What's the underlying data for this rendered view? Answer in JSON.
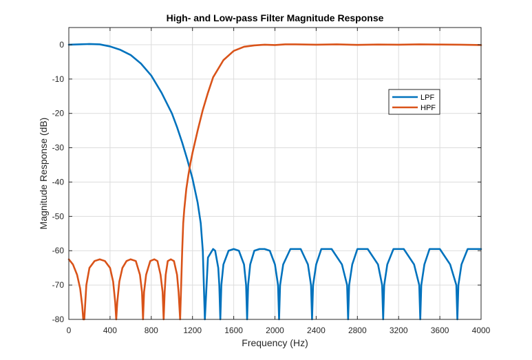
{
  "chart_data": {
    "type": "line",
    "title": "High- and Low-pass Filter Magnitude Response",
    "xlabel": "Frequency (Hz)",
    "ylabel": "Magnitude Response (dB)",
    "xlim": [
      0,
      4000
    ],
    "ylim": [
      -80,
      5
    ],
    "xticks": [
      0,
      400,
      800,
      1200,
      1600,
      2000,
      2400,
      2800,
      3200,
      3600,
      4000
    ],
    "yticks": [
      0,
      -10,
      -20,
      -30,
      -40,
      -50,
      -60,
      -70,
      -80
    ],
    "grid": true,
    "legend_position": "upper-right-inside",
    "series": [
      {
        "name": "LPF",
        "color": "#0072BD",
        "x": [
          0,
          100,
          200,
          300,
          400,
          500,
          600,
          700,
          800,
          900,
          1000,
          1050,
          1100,
          1150,
          1200,
          1250,
          1280,
          1300,
          1320,
          1350,
          1400,
          1420,
          1450,
          1460,
          1470,
          1480,
          1500,
          1550,
          1600,
          1650,
          1700,
          1720,
          1730,
          1740,
          1760,
          1800,
          1850,
          1900,
          1950,
          2000,
          2030,
          2040,
          2050,
          2080,
          2150,
          2250,
          2320,
          2350,
          2360,
          2370,
          2400,
          2450,
          2550,
          2650,
          2700,
          2710,
          2720,
          2750,
          2800,
          2900,
          3000,
          3040,
          3050,
          3060,
          3090,
          3150,
          3250,
          3350,
          3400,
          3410,
          3420,
          3450,
          3500,
          3600,
          3700,
          3760,
          3770,
          3780,
          3810,
          3870,
          3930,
          4000
        ],
        "y": [
          0,
          0.1,
          0.2,
          0.1,
          -0.5,
          -1.5,
          -3,
          -5.5,
          -9,
          -14,
          -20,
          -24,
          -28.5,
          -33.5,
          -39,
          -46,
          -52,
          -60,
          -80,
          -62,
          -59.5,
          -60,
          -65,
          -70,
          -80,
          -70,
          -64,
          -60,
          -59.5,
          -60,
          -64,
          -70,
          -80,
          -70,
          -64,
          -60,
          -59.5,
          -59.5,
          -60,
          -64,
          -70,
          -80,
          -70,
          -64,
          -59.5,
          -59.5,
          -64,
          -70,
          -80,
          -70,
          -64,
          -59.5,
          -59.5,
          -64,
          -70,
          -80,
          -70,
          -64,
          -59.5,
          -59.5,
          -64,
          -70,
          -80,
          -70,
          -64,
          -59.5,
          -59.5,
          -64,
          -70,
          -80,
          -70,
          -64,
          -59.5,
          -59.5,
          -64,
          -70,
          -80,
          -70,
          -64,
          -59.5,
          -59.5,
          -59.5
        ]
      },
      {
        "name": "HPF",
        "color": "#D95319",
        "x": [
          0,
          40,
          80,
          110,
          130,
          140,
          150,
          170,
          200,
          250,
          300,
          350,
          400,
          430,
          450,
          460,
          470,
          490,
          520,
          560,
          600,
          650,
          690,
          710,
          720,
          730,
          750,
          790,
          830,
          860,
          890,
          910,
          920,
          930,
          940,
          960,
          990,
          1020,
          1050,
          1065,
          1080,
          1090,
          1100,
          1110,
          1120,
          1140,
          1160,
          1180,
          1200,
          1250,
          1300,
          1350,
          1400,
          1500,
          1600,
          1700,
          1800,
          1900,
          2000,
          2100,
          2200,
          2300,
          2400,
          2600,
          2800,
          3000,
          3200,
          3400,
          3600,
          3800,
          4000
        ],
        "y": [
          -62.5,
          -64,
          -67,
          -71,
          -76,
          -80,
          -80,
          -70,
          -65,
          -63,
          -62.5,
          -63,
          -65,
          -69,
          -75,
          -80,
          -75,
          -69,
          -65,
          -63,
          -62.5,
          -63,
          -67,
          -72,
          -80,
          -72,
          -67,
          -63,
          -62.5,
          -63,
          -67,
          -72,
          -80,
          -72,
          -67,
          -63,
          -62.5,
          -63,
          -67,
          -72,
          -80,
          -70,
          -60,
          -52,
          -48,
          -42,
          -38,
          -34.5,
          -31.5,
          -25,
          -19,
          -14,
          -9.5,
          -4.5,
          -1.8,
          -0.6,
          -0.2,
          0,
          -0.1,
          0.1,
          0.1,
          0.05,
          0,
          0.1,
          -0.05,
          0.05,
          0,
          0.1,
          0.05,
          0,
          -0.1
        ]
      }
    ]
  }
}
